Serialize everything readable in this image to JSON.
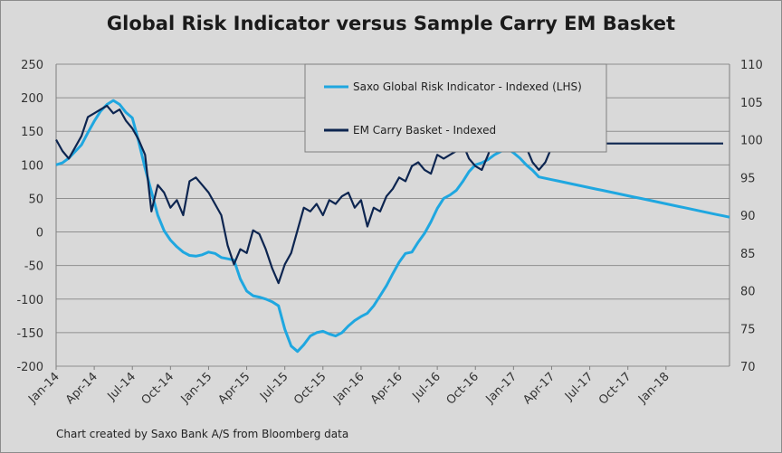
{
  "chart_data": {
    "type": "line",
    "title": "Global Risk Indicator versus Sample Carry EM Basket",
    "footnote": "Chart created by Saxo Bank A/S from Bloomberg  data",
    "x_tick_labels": [
      "Jan-14",
      "Apr-14",
      "Jul-14",
      "Oct-14",
      "Jan-15",
      "Apr-15",
      "Jul-15",
      "Oct-15",
      "Jan-16",
      "Apr-16",
      "Jul-16",
      "Oct-16",
      "Jan-17",
      "Apr-17",
      "Jul-17",
      "Oct-17",
      "Jan-18"
    ],
    "y_left": {
      "lim": [
        -200,
        250
      ],
      "ticks": [
        "250",
        "200",
        "150",
        "100",
        "50",
        "0",
        "-50",
        "-100",
        "-150",
        "-200"
      ]
    },
    "y_right": {
      "lim": [
        70,
        110
      ],
      "ticks": [
        "110",
        "105",
        "100",
        "95",
        "90",
        "85",
        "80",
        "75",
        "70"
      ]
    },
    "grid": true,
    "legend_position": "top-center",
    "x_months": [
      0,
      0.5,
      1,
      1.5,
      2,
      2.5,
      3,
      3.5,
      4,
      4.5,
      5,
      5.5,
      6,
      6.5,
      7,
      7.5,
      8,
      8.5,
      9,
      9.5,
      10,
      10.5,
      11,
      11.5,
      12,
      12.5,
      13,
      13.5,
      14,
      14.5,
      15,
      15.5,
      16,
      16.5,
      17,
      17.5,
      18,
      18.5,
      19,
      19.5,
      20,
      20.5,
      21,
      21.5,
      22,
      22.5,
      23,
      23.5,
      24,
      24.5,
      25,
      25.5,
      26,
      26.5,
      27,
      27.5,
      28,
      28.5,
      29,
      29.5,
      30,
      30.5,
      31,
      31.5,
      32,
      32.5,
      33,
      33.5,
      34,
      34.5,
      35,
      35.5,
      36,
      36.5,
      37,
      37.5,
      38,
      38.5,
      39,
      39.5,
      40,
      40.5,
      41,
      41.5,
      42,
      42.5,
      43,
      43.5,
      44,
      44.5,
      45,
      45.5,
      46,
      46.5,
      47,
      47.5,
      48,
      48.5,
      49,
      49.5,
      50,
      50.5,
      51,
      51.5,
      52,
      52.5,
      53
    ],
    "series": [
      {
        "name": "Saxo Global Risk Indicator - Indexed (LHS)",
        "axis": "left",
        "color": "#1fa7e0",
        "values": [
          100,
          103,
          110,
          120,
          130,
          148,
          165,
          180,
          190,
          196,
          190,
          178,
          170,
          135,
          95,
          60,
          25,
          2,
          -12,
          -22,
          -30,
          -35,
          -36,
          -34,
          -30,
          -32,
          -38,
          -40,
          -42,
          -70,
          -88,
          -95,
          -97,
          -100,
          -104,
          -110,
          -145,
          -170,
          -178,
          -168,
          -155,
          -150,
          -148,
          -152,
          -155,
          -150,
          -140,
          -132,
          -126,
          -121,
          -110,
          -95,
          -80,
          -62,
          -45,
          -32,
          -30,
          -15,
          -2,
          15,
          35,
          50,
          55,
          62,
          75,
          90,
          100,
          103,
          108,
          115,
          120,
          125,
          118,
          110,
          100,
          92,
          82,
          80,
          78,
          76,
          74,
          72,
          70,
          68,
          66,
          64,
          62,
          60,
          58,
          56,
          54,
          52,
          50,
          48,
          46,
          44,
          42,
          40,
          38,
          36,
          34,
          32,
          30,
          28,
          26,
          24,
          22
        ]
      },
      {
        "name": "EM Carry Basket - Indexed",
        "axis": "right",
        "color": "#0d2550",
        "values": [
          100,
          98.5,
          97.5,
          99,
          100.5,
          103,
          103.5,
          104,
          104.5,
          103.5,
          104,
          102.5,
          101.5,
          100,
          98,
          90.5,
          94,
          93,
          91,
          92,
          90,
          94.5,
          95,
          94,
          93,
          91.5,
          90,
          86,
          83.5,
          85.5,
          85,
          88,
          87.5,
          85.5,
          83,
          81,
          83.5,
          85,
          88,
          91,
          90.5,
          91.5,
          90,
          92,
          91.5,
          92.5,
          93,
          91,
          92,
          88.5,
          91,
          90.5,
          92.5,
          93.5,
          95,
          94.5,
          96.5,
          97,
          96,
          95.5,
          98,
          97.5,
          98,
          98.5,
          99.5,
          97.5,
          96.5,
          96,
          98,
          100.5,
          101,
          99.5,
          101,
          99,
          99,
          97,
          96,
          97,
          99,
          100,
          100.5,
          99,
          99.5,
          99.5,
          99.5,
          99.5,
          99.5,
          99.5,
          99.5,
          99.5,
          99.5,
          99.5,
          99.5,
          99.5,
          99.5,
          99.5,
          99.5,
          99.5,
          99.5,
          99.5,
          99.5,
          99.5,
          99.5,
          99.5,
          99.5,
          99.5
        ]
      }
    ]
  }
}
